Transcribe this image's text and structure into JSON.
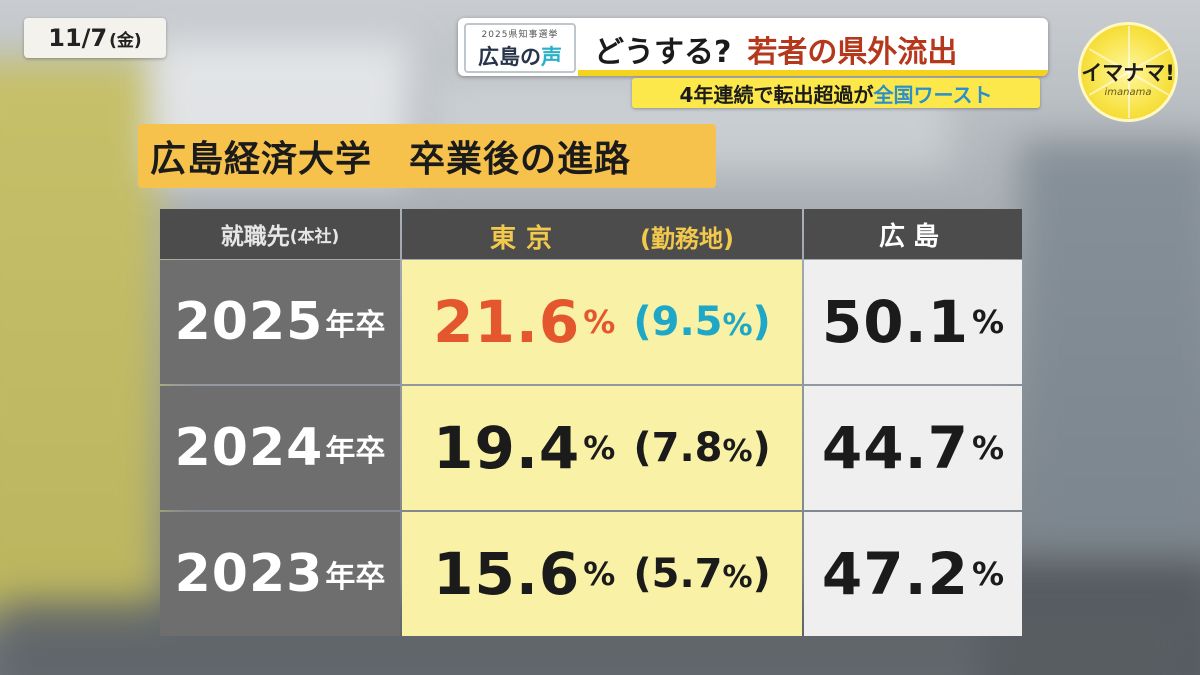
{
  "date": {
    "text": "11/7",
    "weekday": "(金)"
  },
  "banner": {
    "logo_small": "2025県知事選挙",
    "logo_main_a": "広島の",
    "logo_main_b": "声",
    "title_a": "どうする?",
    "title_b": "若者の県外流出",
    "sub_a": "4年連続で転出超過が",
    "sub_b": "全国ワースト"
  },
  "corner_logo": {
    "text": "イマナマ!",
    "sub": "imanama"
  },
  "section_title": "広島経済大学　卒業後の進路",
  "colors": {
    "accent_orange": "#e4572e",
    "accent_teal": "#1ea7c6",
    "header_gold": "#f2c94c",
    "title_bg": "#f6c24c",
    "tokyo_bg": "#f8f1a6"
  },
  "table": {
    "headers": {
      "col1": "就職先",
      "col1_small": "(本社)",
      "tokyo": "東京",
      "work": "(勤務地)",
      "hiroshima": "広島"
    },
    "year_suffix": "年卒",
    "pct_unit": "%",
    "rows": [
      {
        "year": "2025",
        "tokyo": "21.6",
        "work": "9.5",
        "hiroshima": "50.1"
      },
      {
        "year": "2024",
        "tokyo": "19.4",
        "work": "7.8",
        "hiroshima": "44.7"
      },
      {
        "year": "2023",
        "tokyo": "15.6",
        "work": "5.7",
        "hiroshima": "47.2"
      }
    ]
  }
}
